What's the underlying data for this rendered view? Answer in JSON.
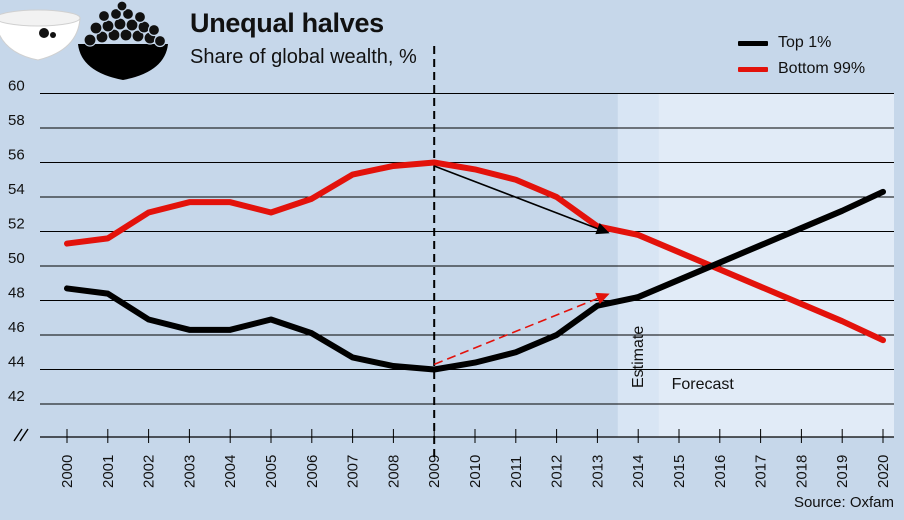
{
  "chart_data": {
    "type": "line",
    "title": "Unequal halves",
    "subtitle": "Share of global wealth, %",
    "source": "Source: Oxfam",
    "x": [
      2000,
      2001,
      2002,
      2003,
      2004,
      2005,
      2006,
      2007,
      2008,
      2009,
      2010,
      2011,
      2012,
      2013,
      2014,
      2015,
      2016,
      2017,
      2018,
      2019,
      2020
    ],
    "x_tick_labels": [
      "2000",
      "2001",
      "2002",
      "2003",
      "2004",
      "2005",
      "2006",
      "2007",
      "2008",
      "2009",
      "2010",
      "2011",
      "2012",
      "2013",
      "2014",
      "2015",
      "2016",
      "2017",
      "2018",
      "2019",
      "2020"
    ],
    "y_ticks": [
      42,
      44,
      46,
      48,
      50,
      52,
      54,
      56,
      58,
      60
    ],
    "ylim": [
      42,
      60
    ],
    "grid": true,
    "legend_position": "top-right",
    "series": [
      {
        "name": "Top 1%",
        "color": "#000000",
        "values": [
          48.7,
          48.4,
          46.9,
          46.3,
          46.3,
          46.9,
          46.1,
          44.7,
          44.2,
          44.0,
          44.4,
          45.0,
          46.0,
          47.7,
          48.2,
          49.2,
          50.2,
          51.2,
          52.2,
          53.2,
          54.3
        ]
      },
      {
        "name": "Bottom 99%",
        "color": "#e3120b",
        "values": [
          51.3,
          51.6,
          53.1,
          53.7,
          53.7,
          53.1,
          53.9,
          55.3,
          55.8,
          56.0,
          55.6,
          55.0,
          54.0,
          52.3,
          51.8,
          50.8,
          49.8,
          48.8,
          47.8,
          46.8,
          45.7
        ]
      }
    ],
    "zones": [
      {
        "label": "Estimate",
        "from": 2013.5,
        "to": 2014.5,
        "color": "#d8e5f4"
      },
      {
        "label": "Forecast",
        "from": 2014.5,
        "to": 2020.5,
        "color": "#e1ebf7"
      }
    ],
    "reference_line": {
      "x": 2009,
      "style": "dashed"
    },
    "annotations": [
      {
        "type": "arrow",
        "color": "#000000",
        "style": "solid",
        "from": {
          "x": 2009,
          "y": 55.8
        },
        "to": {
          "x": 2013.3,
          "y": 51.9
        }
      },
      {
        "type": "arrow",
        "color": "#e3120b",
        "style": "dashed",
        "from": {
          "x": 2009,
          "y": 44.3
        },
        "to": {
          "x": 2013.3,
          "y": 48.4
        }
      }
    ],
    "axis_break": true
  },
  "icons": {
    "left_bowl": "empty-bowl-icon",
    "right_bowl": "full-bowl-icon"
  }
}
